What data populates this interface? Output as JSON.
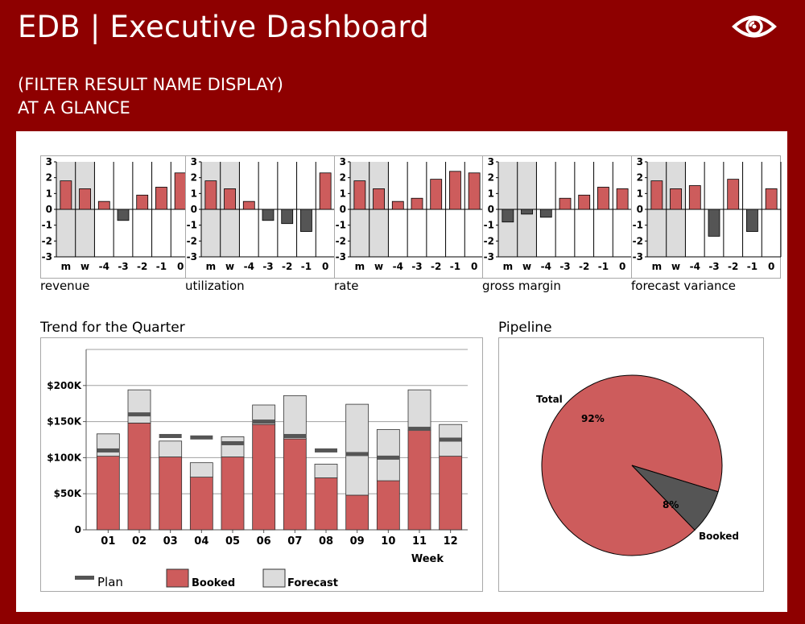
{
  "header": {
    "title": "EDB | Executive Dashboard",
    "subtitle_line1": "(FILTER RESULT NAME DISPLAY)",
    "subtitle_line2": "AT A GLANCE",
    "eye_icon": "eye-icon"
  },
  "colors": {
    "background": "#8e0000",
    "booked": "#cd5c5c",
    "forecast": "#dcdcdc",
    "plan": "#555555",
    "negative": "#555555"
  },
  "sparklines": {
    "yticks": [
      "3",
      "2",
      "1",
      "0",
      "-1",
      "-2",
      "-3"
    ],
    "categories": [
      "m",
      "w",
      "-4",
      "-3",
      "-2",
      "-1",
      "0"
    ],
    "items": [
      {
        "label": "revenue"
      },
      {
        "label": "utilization"
      },
      {
        "label": "rate"
      },
      {
        "label": "gross margin"
      },
      {
        "label": "forecast variance"
      }
    ]
  },
  "trend": {
    "title": "Trend for the Quarter",
    "xlabel": "Week",
    "yticks": [
      "0",
      "$50K",
      "$100K",
      "$150K",
      "$200K"
    ],
    "legend": {
      "plan": "Plan",
      "booked": "Booked",
      "forecast": "Forecast"
    }
  },
  "pipeline": {
    "title": "Pipeline",
    "total_label": "Total",
    "total_pct": "92%",
    "booked_label": "Booked",
    "booked_pct": "8%"
  },
  "chart_data": [
    {
      "type": "bar",
      "title": "revenue",
      "categories": [
        "m",
        "w",
        "-4",
        "-3",
        "-2",
        "-1",
        "0"
      ],
      "values": [
        1.8,
        1.3,
        0.5,
        -0.7,
        0.9,
        1.4,
        2.3
      ],
      "ylim": [
        -3,
        3
      ],
      "shaded_categories": [
        "m",
        "w"
      ]
    },
    {
      "type": "bar",
      "title": "utilization",
      "categories": [
        "m",
        "w",
        "-4",
        "-3",
        "-2",
        "-1",
        "0"
      ],
      "values": [
        1.8,
        1.3,
        0.5,
        -0.7,
        -0.9,
        -1.4,
        2.3
      ],
      "ylim": [
        -3,
        3
      ],
      "shaded_categories": [
        "m",
        "w"
      ]
    },
    {
      "type": "bar",
      "title": "rate",
      "categories": [
        "m",
        "w",
        "-4",
        "-3",
        "-2",
        "-1",
        "0"
      ],
      "values": [
        1.8,
        1.3,
        0.5,
        0.7,
        1.9,
        2.4,
        2.3
      ],
      "ylim": [
        -3,
        3
      ],
      "shaded_categories": [
        "m",
        "w"
      ]
    },
    {
      "type": "bar",
      "title": "gross margin",
      "categories": [
        "m",
        "w",
        "-4",
        "-3",
        "-2",
        "-1",
        "0"
      ],
      "values": [
        -0.8,
        -0.3,
        -0.5,
        0.7,
        0.9,
        1.4,
        1.3
      ],
      "ylim": [
        -3,
        3
      ],
      "shaded_categories": [
        "m",
        "w"
      ]
    },
    {
      "type": "bar",
      "title": "forecast variance",
      "categories": [
        "m",
        "w",
        "-4",
        "-3",
        "-2",
        "-1",
        "0"
      ],
      "values": [
        1.8,
        1.3,
        1.5,
        -1.7,
        1.9,
        -1.4,
        1.3
      ],
      "ylim": [
        -3,
        3
      ],
      "shaded_categories": [
        "m",
        "w"
      ]
    },
    {
      "type": "bar",
      "title": "Trend for the Quarter",
      "xlabel": "Week",
      "categories": [
        "01",
        "02",
        "03",
        "04",
        "05",
        "06",
        "07",
        "08",
        "09",
        "10",
        "11",
        "12"
      ],
      "ylim": [
        0,
        250000
      ],
      "series": [
        {
          "name": "Booked",
          "values": [
            102000,
            148000,
            101000,
            73000,
            101000,
            146000,
            126000,
            72000,
            48000,
            68000,
            138000,
            102000
          ]
        },
        {
          "name": "Forecast",
          "values": [
            31000,
            46000,
            22000,
            20000,
            28000,
            27000,
            60000,
            19000,
            126000,
            71000,
            56000,
            44000
          ]
        },
        {
          "name": "Plan",
          "values": [
            110000,
            160000,
            130000,
            128000,
            120000,
            150000,
            130000,
            110000,
            105000,
            100000,
            140000,
            125000
          ]
        }
      ]
    },
    {
      "type": "pie",
      "title": "Pipeline",
      "categories": [
        "Total",
        "Booked"
      ],
      "values": [
        92,
        8
      ]
    }
  ]
}
